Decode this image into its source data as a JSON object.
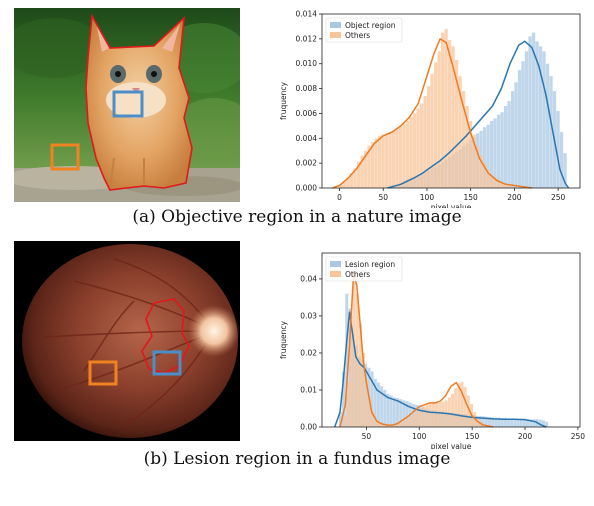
{
  "captions": {
    "a": "(a)  Objective region in a nature image",
    "b": "(b)  Lesion region in a fundus image"
  },
  "colors": {
    "object_fill": "#a9c8e4",
    "object_line": "#2b76b0",
    "others_fill": "#f8c49a",
    "others_line": "#ef7b22",
    "roi_blue": "#4a8fc9",
    "roi_orange": "#f0821f",
    "contour_red": "#e0181b"
  },
  "chart_data": [
    {
      "type": "histogram",
      "xlabel": "pixel value",
      "ylabel": "fruquency",
      "xlim": [
        -20,
        275
      ],
      "ylim": [
        0,
        0.014
      ],
      "xticks": [
        0,
        50,
        100,
        150,
        200,
        250
      ],
      "yticks": [
        0.0,
        0.002,
        0.004,
        0.006,
        0.008,
        0.01,
        0.012,
        0.014
      ],
      "ytick_labels": [
        "0.000",
        "0.002",
        "0.004",
        "0.006",
        "0.008",
        "0.010",
        "0.012",
        "0.014"
      ],
      "legend_position": "top-left",
      "series": [
        {
          "name": "Object region",
          "color_key": "object",
          "kde_x": [
            55,
            70,
            85,
            95,
            105,
            115,
            125,
            135,
            145,
            155,
            165,
            175,
            185,
            195,
            205,
            212,
            220,
            228,
            236,
            244,
            252,
            258,
            262
          ],
          "kde_y": [
            0,
            0.0003,
            0.0008,
            0.0012,
            0.0017,
            0.0022,
            0.0028,
            0.0035,
            0.0042,
            0.005,
            0.0058,
            0.0066,
            0.008,
            0.01,
            0.0115,
            0.0118,
            0.0113,
            0.0098,
            0.0075,
            0.0045,
            0.0015,
            0.0004,
            0
          ],
          "hist_start": 60,
          "hist_width": 4,
          "hist_values": [
            0.0002,
            0.0003,
            0.0004,
            0.0006,
            0.0007,
            0.0008,
            0.0009,
            0.001,
            0.0011,
            0.0013,
            0.0014,
            0.0016,
            0.0017,
            0.0019,
            0.0021,
            0.0023,
            0.0025,
            0.0027,
            0.0029,
            0.0031,
            0.0034,
            0.0036,
            0.0039,
            0.0041,
            0.0044,
            0.0046,
            0.0049,
            0.0051,
            0.0054,
            0.0056,
            0.0059,
            0.0061,
            0.0066,
            0.007,
            0.0078,
            0.0085,
            0.0095,
            0.0102,
            0.011,
            0.0122,
            0.0125,
            0.0118,
            0.0114,
            0.011,
            0.01,
            0.009,
            0.0078,
            0.0062,
            0.0045,
            0.0028
          ]
        },
        {
          "name": "Others",
          "color_key": "others",
          "kde_x": [
            -8,
            0,
            10,
            20,
            30,
            40,
            50,
            60,
            70,
            80,
            90,
            100,
            108,
            115,
            122,
            130,
            140,
            150,
            160,
            170,
            180,
            190,
            200,
            210,
            220
          ],
          "kde_y": [
            0,
            0.0002,
            0.0008,
            0.0016,
            0.0026,
            0.0036,
            0.0042,
            0.0045,
            0.005,
            0.0057,
            0.0068,
            0.009,
            0.0108,
            0.012,
            0.0117,
            0.0097,
            0.007,
            0.0044,
            0.0024,
            0.0012,
            0.0006,
            0.0003,
            0.0002,
            0.0001,
            0
          ],
          "hist_start": 0,
          "hist_width": 4,
          "hist_values": [
            0.0003,
            0.0005,
            0.0008,
            0.0012,
            0.0016,
            0.0021,
            0.0026,
            0.003,
            0.0034,
            0.0037,
            0.004,
            0.0042,
            0.0043,
            0.0044,
            0.0045,
            0.0046,
            0.0048,
            0.005,
            0.0052,
            0.0054,
            0.0057,
            0.006,
            0.0064,
            0.0068,
            0.0074,
            0.0082,
            0.0092,
            0.0101,
            0.011,
            0.0125,
            0.0128,
            0.0119,
            0.0114,
            0.0103,
            0.009,
            0.0078,
            0.0066,
            0.0054,
            0.0043,
            0.0034,
            0.0026,
            0.002,
            0.0015,
            0.0011,
            0.0008,
            0.0006,
            0.0004,
            0.0003,
            0.0002,
            0.0001
          ]
        }
      ]
    },
    {
      "type": "histogram",
      "xlabel": "pixel value",
      "ylabel": "fruquency",
      "xlim": [
        8,
        252
      ],
      "ylim": [
        0,
        0.047
      ],
      "xticks": [
        50,
        100,
        150,
        200,
        250
      ],
      "yticks": [
        0.0,
        0.01,
        0.02,
        0.03,
        0.04
      ],
      "ytick_labels": [
        "0.00",
        "0.01",
        "0.02",
        "0.03",
        "0.04"
      ],
      "legend_position": "top-left",
      "series": [
        {
          "name": "Lesion region",
          "color_key": "object",
          "kde_x": [
            20,
            25,
            28,
            31,
            34,
            37,
            40,
            44,
            48,
            52,
            56,
            60,
            70,
            80,
            90,
            100,
            110,
            120,
            130,
            140,
            150,
            160,
            170,
            180,
            190,
            200,
            210,
            215,
            220
          ],
          "kde_y": [
            0,
            0.004,
            0.012,
            0.022,
            0.031,
            0.025,
            0.019,
            0.017,
            0.016,
            0.014,
            0.012,
            0.01,
            0.008,
            0.007,
            0.0055,
            0.0045,
            0.004,
            0.0038,
            0.0035,
            0.003,
            0.0026,
            0.0024,
            0.0022,
            0.0021,
            0.0021,
            0.002,
            0.0014,
            0.0006,
            0
          ],
          "hist_start": 24,
          "hist_width": 3,
          "hist_values": [
            0.004,
            0.015,
            0.036,
            0.032,
            0.025,
            0.022,
            0.019,
            0.018,
            0.017,
            0.016,
            0.015,
            0.013,
            0.012,
            0.011,
            0.01,
            0.009,
            0.0085,
            0.008,
            0.0078,
            0.0075,
            0.0072,
            0.007,
            0.0066,
            0.0062,
            0.006,
            0.0058,
            0.0055,
            0.005,
            0.0048,
            0.0046,
            0.0045,
            0.0043,
            0.0042,
            0.004,
            0.004,
            0.0039,
            0.0038,
            0.0037,
            0.0036,
            0.0035,
            0.0034,
            0.0033,
            0.0032,
            0.003,
            0.003,
            0.0029,
            0.0028,
            0.0027,
            0.0026,
            0.0025,
            0.0025,
            0.0024,
            0.0024,
            0.0023,
            0.0023,
            0.0022,
            0.0022,
            0.0022,
            0.0022,
            0.0021,
            0.0021,
            0.0021,
            0.0021,
            0.002,
            0.0018,
            0.0014
          ]
        },
        {
          "name": "Others",
          "color_key": "others",
          "kde_x": [
            25,
            30,
            34,
            38,
            41,
            44,
            47,
            50,
            55,
            60,
            65,
            70,
            75,
            80,
            90,
            100,
            110,
            115,
            120,
            125,
            130,
            135,
            140,
            145,
            150,
            155,
            160,
            170
          ],
          "kde_y": [
            0,
            0.006,
            0.022,
            0.042,
            0.038,
            0.028,
            0.018,
            0.012,
            0.004,
            0.0015,
            0.0008,
            0.0005,
            0.0005,
            0.001,
            0.003,
            0.0055,
            0.0065,
            0.0065,
            0.007,
            0.0085,
            0.011,
            0.012,
            0.0095,
            0.006,
            0.003,
            0.0015,
            0.0006,
            0
          ],
          "hist_start": 28,
          "hist_width": 3,
          "hist_values": [
            0.003,
            0.012,
            0.03,
            0.042,
            0.036,
            0.028,
            0.02,
            0.013,
            0.008,
            0.004,
            0.002,
            0.0012,
            0.0008,
            0.0006,
            0.0005,
            0.0005,
            0.0006,
            0.0009,
            0.0013,
            0.0018,
            0.0025,
            0.003,
            0.0038,
            0.0045,
            0.005,
            0.0055,
            0.006,
            0.0065,
            0.0066,
            0.0065,
            0.0066,
            0.0068,
            0.0072,
            0.008,
            0.009,
            0.0105,
            0.0118,
            0.0122,
            0.0108,
            0.0085,
            0.0062,
            0.004,
            0.0025,
            0.0014,
            0.0008
          ]
        }
      ]
    }
  ]
}
